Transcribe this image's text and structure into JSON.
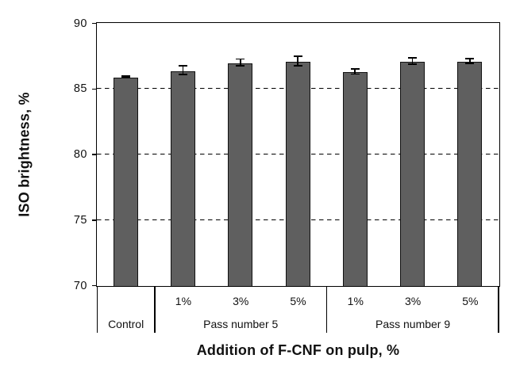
{
  "chart_data": {
    "type": "bar",
    "title": "",
    "ylabel": "ISO brightness, %",
    "xlabel": "Addition of F-CNF on pulp, %",
    "ylim": [
      70,
      90
    ],
    "yticks": [
      "70",
      "75",
      "80",
      "85",
      "90"
    ],
    "ytick_values": [
      70,
      75,
      80,
      85,
      90
    ],
    "gridline_values": [
      75,
      80,
      85
    ],
    "grid_style": "dashed",
    "legend_position": "none",
    "bar_color": "#5f5f5f",
    "bar_border_color": "#111111",
    "error_bar_color": "#000000",
    "groups": [
      {
        "label": "Control",
        "bars": [
          {
            "tick": "",
            "value": 85.9,
            "error": 0.1
          }
        ]
      },
      {
        "label": "Pass number 5",
        "bars": [
          {
            "tick": "1%",
            "value": 86.4,
            "error": 0.4
          },
          {
            "tick": "3%",
            "value": 87.0,
            "error": 0.3
          },
          {
            "tick": "5%",
            "value": 87.1,
            "error": 0.4
          }
        ]
      },
      {
        "label": "Pass number 9",
        "bars": [
          {
            "tick": "1%",
            "value": 86.3,
            "error": 0.25
          },
          {
            "tick": "3%",
            "value": 87.1,
            "error": 0.3
          },
          {
            "tick": "5%",
            "value": 87.1,
            "error": 0.25
          }
        ]
      }
    ]
  }
}
